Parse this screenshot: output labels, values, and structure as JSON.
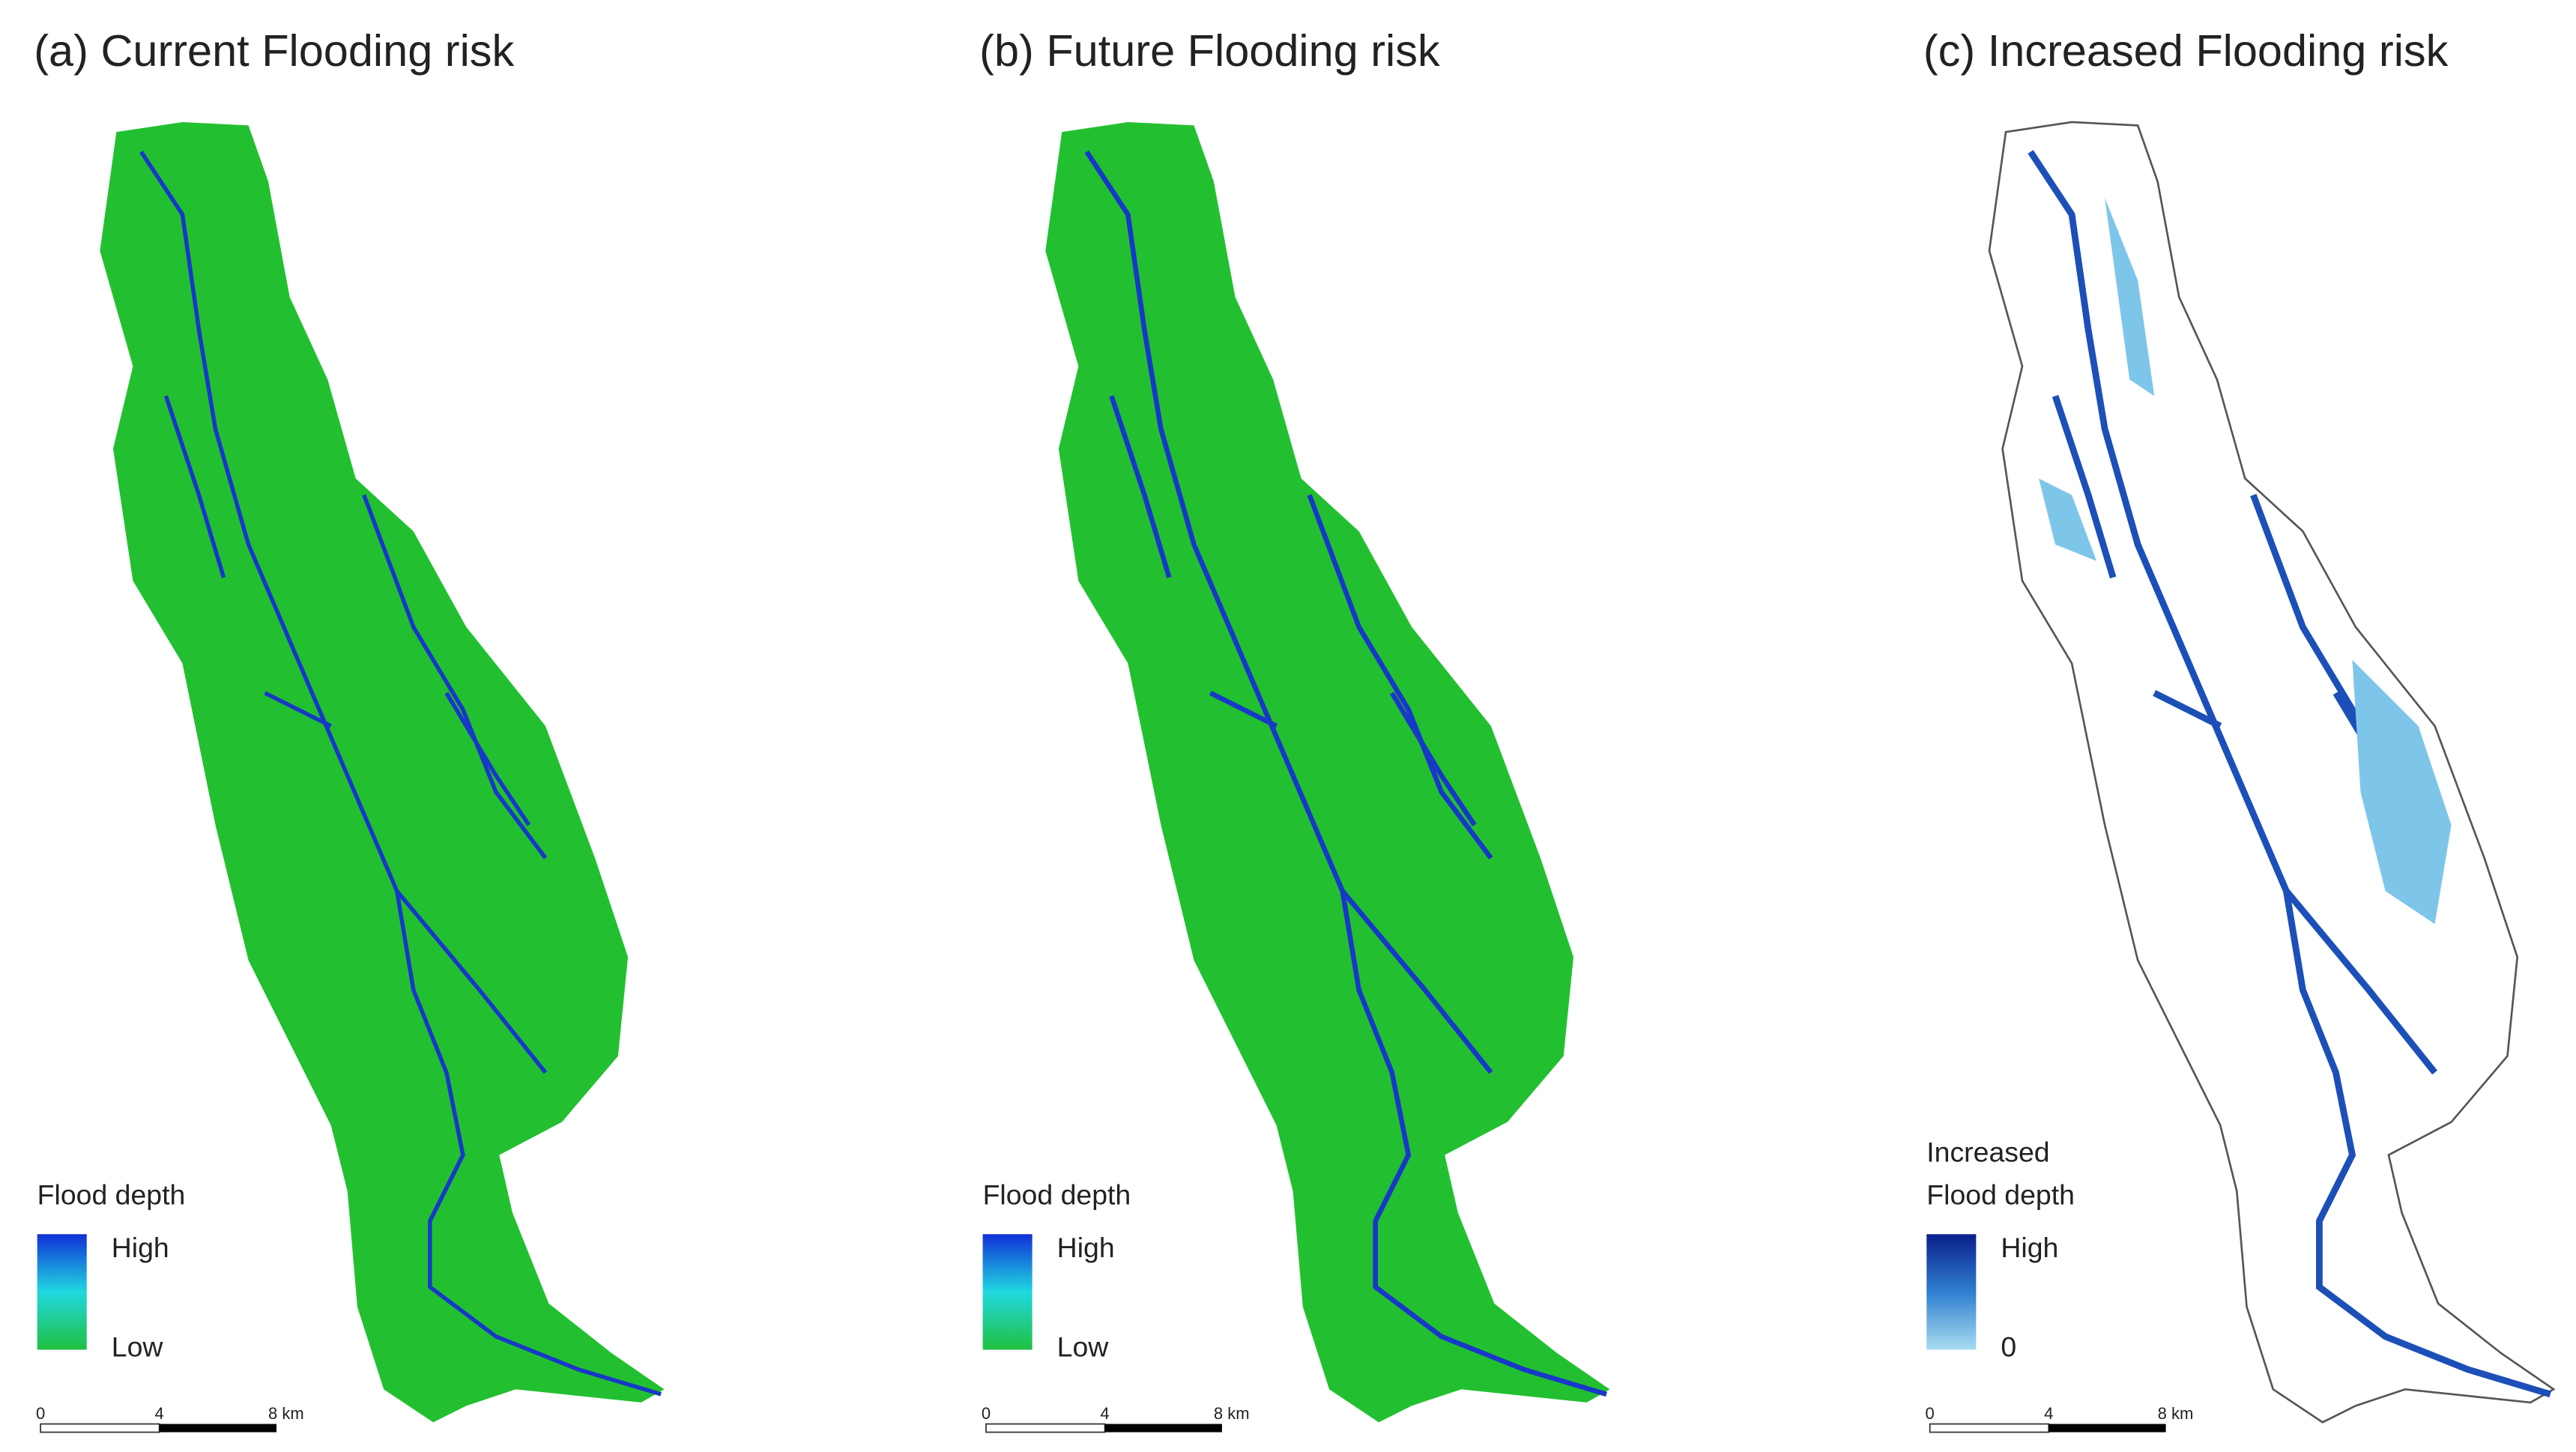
{
  "panels": [
    {
      "title": "(a) Current Flooding risk",
      "legend": {
        "title": [
          "Flood depth"
        ],
        "high": "High",
        "low": "Low"
      },
      "scale": [
        "0",
        "4",
        "8 km"
      ]
    },
    {
      "title": "(b) Future Flooding risk",
      "legend": {
        "title": [
          "Flood depth"
        ],
        "high": "High",
        "low": "Low"
      },
      "scale": [
        "0",
        "4",
        "8 km"
      ]
    },
    {
      "title": "(c) Increased Flooding risk",
      "legend": {
        "title": [
          "Increased",
          "Flood depth"
        ],
        "high": "High",
        "low": "0"
      },
      "scale": [
        "0",
        "4",
        "8 km"
      ]
    }
  ]
}
